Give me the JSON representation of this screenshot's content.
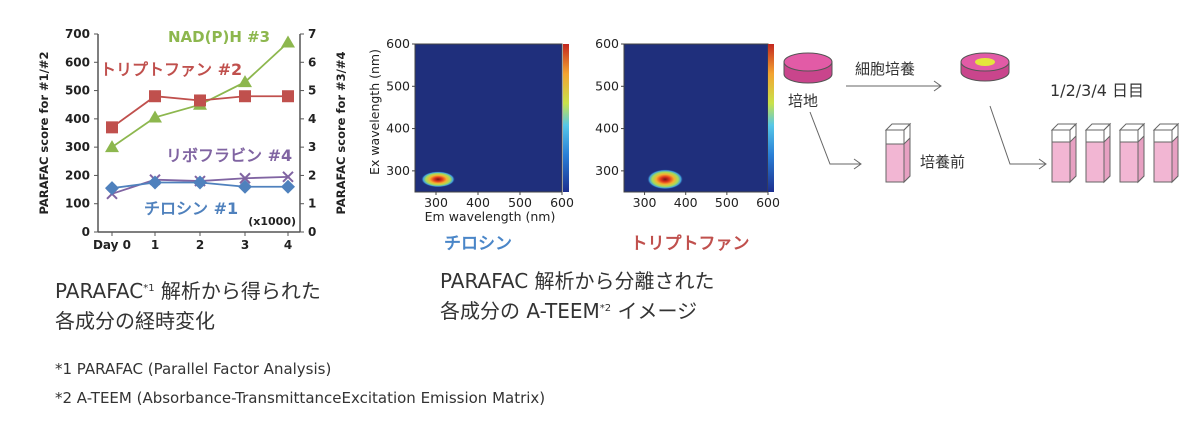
{
  "chart_data": [
    {
      "type": "line",
      "categories": [
        "Day 0",
        "1",
        "2",
        "3",
        "4"
      ],
      "ylabel": "PARAFAC score for #1/#2",
      "ylabel_right": "PARAFAC score for #3/#4",
      "ylim": [
        0,
        700
      ],
      "ylim_right": [
        0,
        7
      ],
      "yticks": [
        "0",
        "100",
        "200",
        "300",
        "400",
        "500",
        "600",
        "700"
      ],
      "yticks_right": [
        "0",
        "1",
        "2",
        "3",
        "4",
        "5",
        "6",
        "7"
      ],
      "scale_note": "(x1000)",
      "grid": false,
      "series": [
        {
          "name": "NAD(P)H #3",
          "axis": "right",
          "values": [
            3.0,
            4.05,
            4.5,
            5.3,
            6.7
          ],
          "color": "#8db74e",
          "marker": "triangle"
        },
        {
          "name": "トリプトファン #2",
          "axis": "left",
          "values": [
            370,
            480,
            465,
            480,
            480
          ],
          "color": "#c0504d",
          "marker": "square"
        },
        {
          "name": "リボフラビン #4",
          "axis": "right",
          "values": [
            1.35,
            1.85,
            1.8,
            1.9,
            1.95
          ],
          "color": "#8064a2",
          "marker": "x"
        },
        {
          "name": "チロシン #1",
          "axis": "left",
          "values": [
            155,
            175,
            175,
            160,
            160
          ],
          "color": "#4f81bd",
          "marker": "diamond"
        }
      ]
    },
    {
      "type": "heatmap",
      "title": "チロシン",
      "title_color": "#4a86c8",
      "xlabel": "Em wavelength (nm)",
      "ylabel": "Ex wavelength (nm)",
      "xticks": [
        "300",
        "400",
        "500",
        "600"
      ],
      "yticks": [
        "300",
        "400",
        "500",
        "600"
      ],
      "xlim": [
        250,
        600
      ],
      "ylim": [
        250,
        600
      ],
      "peak": {
        "em": 305,
        "ex": 280
      }
    },
    {
      "type": "heatmap",
      "title": "トリプトファン",
      "title_color": "#c0504d",
      "xticks": [
        "300",
        "400",
        "500",
        "600"
      ],
      "yticks": [
        "300",
        "400",
        "500",
        "600"
      ],
      "xlim": [
        250,
        600
      ],
      "ylim": [
        250,
        600
      ],
      "peak": {
        "em": 350,
        "ex": 280
      }
    }
  ],
  "captions": {
    "chart_line1_main": "PARAFAC",
    "chart_line1_sup": "*1",
    "chart_line1_rest": " 解析から得られた",
    "chart_line2": "各成分の経時変化",
    "eem_line1": "PARAFAC 解析から分離された",
    "eem_line2_main": "各成分の A-TEEM",
    "eem_line2_sup": "*2",
    "eem_line2_rest": " イメージ"
  },
  "diagram": {
    "culture_label": "細胞培養",
    "medium_label": "培地",
    "before_label": "培養前",
    "days_label": "1/2/3/4 日目",
    "dish_color": "#e25ba6",
    "center_color": "#e4e63c",
    "tube_color": "#f2b6d3"
  },
  "footnotes": {
    "fn1": "*1  PARAFAC (Parallel Factor Analysis)",
    "fn2": "*2  A-TEEM (Absorbance-TransmittanceExcitation Emission Matrix)"
  }
}
